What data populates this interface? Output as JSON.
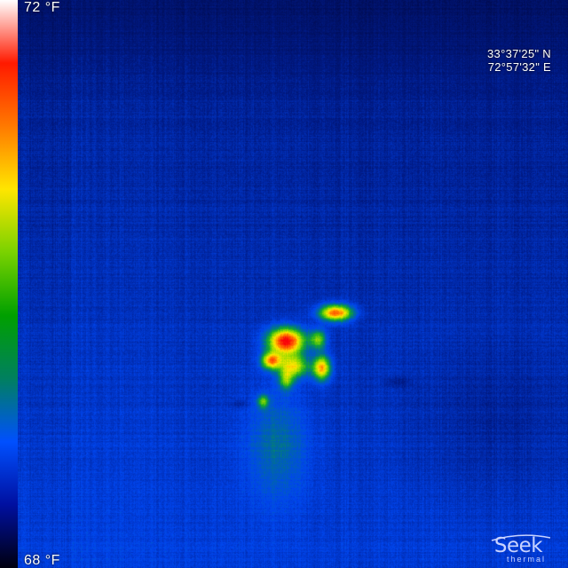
{
  "thermal": {
    "scale_max_label": "72 °F",
    "scale_min_label": "68 °F",
    "palette": [
      "#ffffff",
      "#ff1a00",
      "#ff7a00",
      "#ffe600",
      "#7ad200",
      "#00a000",
      "#008060",
      "#0050ff",
      "#0010a0",
      "#000010"
    ]
  },
  "gps": {
    "latitude": "33°37'25\" N",
    "longitude": "72°57'32\" E"
  },
  "brand": {
    "name": "Seek",
    "subtitle": "thermal"
  }
}
